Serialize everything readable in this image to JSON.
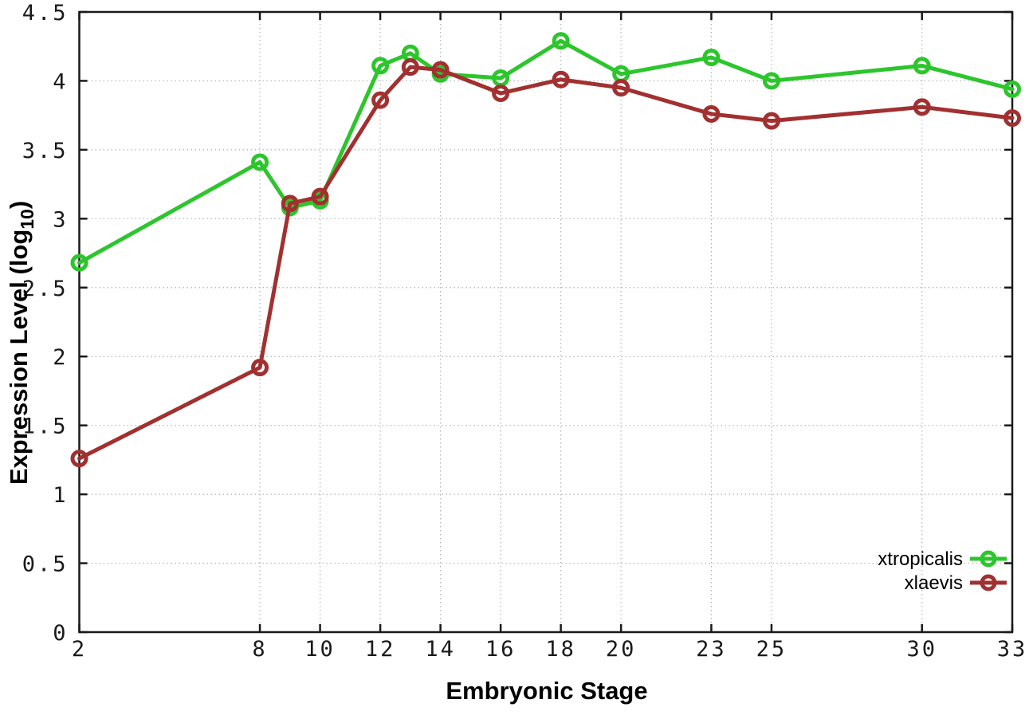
{
  "figure": {
    "background": "#ffffff",
    "border_color": "#1a1a1a",
    "grid_color": "#b3b3b3",
    "ylabel_parts": {
      "pre": "Expression Level (log",
      "sub": "10",
      "post": ")"
    }
  },
  "chart_data": {
    "type": "line",
    "title": "",
    "xlabel": "Embryonic Stage",
    "ylabel": "Expression Level (log10)",
    "x": [
      2,
      8,
      9,
      10,
      12,
      13,
      14,
      16,
      18,
      20,
      23,
      25,
      30,
      33
    ],
    "xlim": [
      2,
      33
    ],
    "ylim": [
      0,
      4.5
    ],
    "x_tick_values": [
      2,
      8,
      10,
      12,
      14,
      16,
      18,
      20,
      23,
      25,
      30,
      33
    ],
    "x_tick_labels": [
      "2",
      "8",
      "10",
      "12",
      "14",
      "16",
      "18",
      "20",
      "23",
      "25",
      "30",
      "33"
    ],
    "y_tick_values": [
      0,
      0.5,
      1,
      1.5,
      2,
      2.5,
      3,
      3.5,
      4,
      4.5
    ],
    "y_tick_labels": [
      "0",
      "0.5",
      "1",
      "1.5",
      "2",
      "2.5",
      "3",
      "3.5",
      "4",
      "4.5"
    ],
    "grid": true,
    "legend_position": "bottom-right-inside",
    "marker": "open-circle",
    "series": [
      {
        "name": "xtropicalis",
        "color": "#2cc62c",
        "values": [
          2.68,
          3.41,
          3.08,
          3.13,
          4.11,
          4.2,
          4.05,
          4.02,
          4.29,
          4.05,
          4.17,
          4.0,
          4.11,
          3.94
        ]
      },
      {
        "name": "xlaevis",
        "color": "#a23030",
        "values": [
          1.26,
          1.92,
          3.11,
          3.16,
          3.86,
          4.1,
          4.08,
          3.91,
          4.01,
          3.95,
          3.76,
          3.71,
          3.81,
          3.73
        ]
      }
    ]
  }
}
